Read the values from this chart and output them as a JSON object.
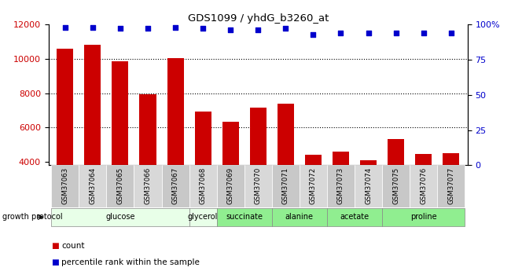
{
  "title": "GDS1099 / yhdG_b3260_at",
  "samples": [
    "GSM37063",
    "GSM37064",
    "GSM37065",
    "GSM37066",
    "GSM37067",
    "GSM37068",
    "GSM37069",
    "GSM37070",
    "GSM37071",
    "GSM37072",
    "GSM37073",
    "GSM37074",
    "GSM37075",
    "GSM37076",
    "GSM37077"
  ],
  "counts": [
    10600,
    10800,
    9850,
    7950,
    10050,
    6950,
    6350,
    7150,
    7400,
    4400,
    4600,
    4100,
    5350,
    4450,
    4500
  ],
  "percentiles": [
    98,
    98,
    97,
    97,
    98,
    97,
    96,
    96,
    97,
    93,
    94,
    94,
    94,
    94,
    94
  ],
  "ylim_left": [
    3800,
    12000
  ],
  "ylim_right": [
    0,
    100
  ],
  "yticks_left": [
    4000,
    6000,
    8000,
    10000,
    12000
  ],
  "yticks_right": [
    0,
    25,
    50,
    75,
    100
  ],
  "bar_color": "#cc0000",
  "dot_color": "#0000cc",
  "group_boundaries": [
    {
      "label": "glucose",
      "start": 0,
      "end": 4,
      "color": "#e8ffe8"
    },
    {
      "label": "glycerol",
      "start": 5,
      "end": 5,
      "color": "#e8ffe8"
    },
    {
      "label": "succinate",
      "start": 6,
      "end": 7,
      "color": "#90ee90"
    },
    {
      "label": "alanine",
      "start": 8,
      "end": 9,
      "color": "#90ee90"
    },
    {
      "label": "acetate",
      "start": 10,
      "end": 11,
      "color": "#90ee90"
    },
    {
      "label": "proline",
      "start": 12,
      "end": 14,
      "color": "#90ee90"
    }
  ],
  "growth_protocol_label": "growth protocol",
  "legend_count_label": "count",
  "legend_pct_label": "percentile rank within the sample",
  "tick_label_color_left": "#cc0000",
  "tick_label_color_right": "#0000cc",
  "cell_color_odd": "#c8c8c8",
  "cell_color_even": "#d8d8d8"
}
